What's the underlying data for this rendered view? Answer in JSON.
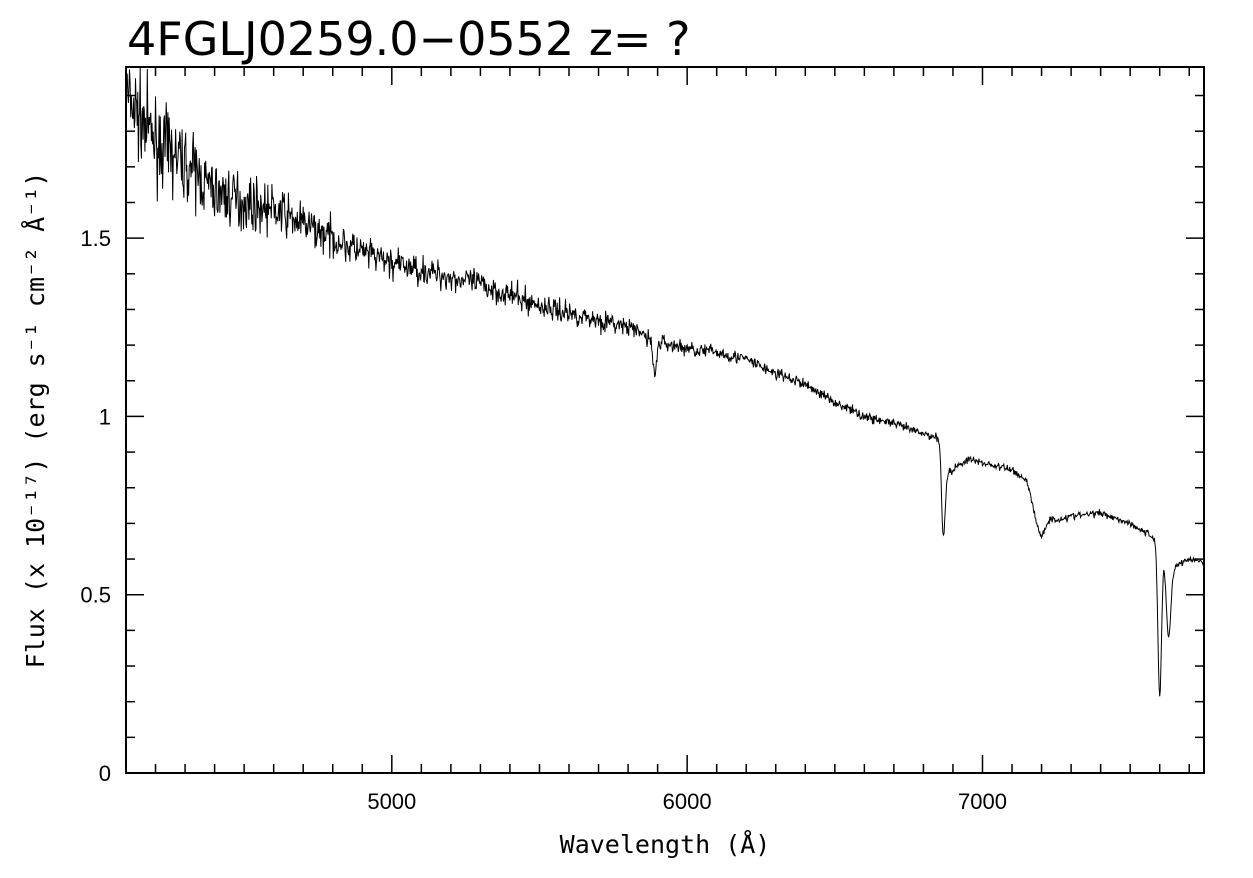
{
  "chart_data": {
    "type": "line",
    "title": "4FGLJ0259.0−0552 z= ?",
    "xlabel": "Wavelength (Å)",
    "ylabel": "Flux (x 10⁻¹⁷) (erg s⁻¹ cm⁻² Å⁻¹)",
    "xlim": [
      4100,
      7750
    ],
    "ylim": [
      0,
      1.98
    ],
    "x_ticks": [
      {
        "value": 5000,
        "label": "5000"
      },
      {
        "value": 6000,
        "label": "6000"
      },
      {
        "value": 7000,
        "label": "7000"
      }
    ],
    "y_ticks": [
      {
        "value": 0,
        "label": "0"
      },
      {
        "value": 0.5,
        "label": "0.5"
      },
      {
        "value": 1,
        "label": "1"
      },
      {
        "value": 1.5,
        "label": "1.5"
      }
    ],
    "x_minor_step": 100,
    "y_minor_step": 0.1,
    "grid": false,
    "line_color": "#000000",
    "series": [
      {
        "continuum": [
          [
            4100,
            1.9
          ],
          [
            4200,
            1.77
          ],
          [
            4300,
            1.71
          ],
          [
            4400,
            1.63
          ],
          [
            4500,
            1.6
          ],
          [
            4600,
            1.58
          ],
          [
            4700,
            1.54
          ],
          [
            4800,
            1.5
          ],
          [
            4900,
            1.46
          ],
          [
            5000,
            1.43
          ],
          [
            5100,
            1.41
          ],
          [
            5200,
            1.39
          ],
          [
            5300,
            1.37
          ],
          [
            5400,
            1.34
          ],
          [
            5500,
            1.31
          ],
          [
            5600,
            1.29
          ],
          [
            5700,
            1.27
          ],
          [
            5800,
            1.25
          ],
          [
            5900,
            1.21
          ],
          [
            6000,
            1.19
          ],
          [
            6100,
            1.18
          ],
          [
            6200,
            1.16
          ],
          [
            6300,
            1.12
          ],
          [
            6400,
            1.09
          ],
          [
            6500,
            1.04
          ],
          [
            6600,
            1.0
          ],
          [
            6700,
            0.98
          ],
          [
            6800,
            0.95
          ],
          [
            6860,
            0.94
          ],
          [
            6880,
            0.84
          ],
          [
            6950,
            0.88
          ],
          [
            7000,
            0.87
          ],
          [
            7100,
            0.85
          ],
          [
            7150,
            0.82
          ],
          [
            7180,
            0.72
          ],
          [
            7250,
            0.71
          ],
          [
            7300,
            0.72
          ],
          [
            7400,
            0.73
          ],
          [
            7500,
            0.7
          ],
          [
            7580,
            0.66
          ],
          [
            7650,
            0.58
          ],
          [
            7700,
            0.6
          ],
          [
            7750,
            0.59
          ]
        ],
        "noise": [
          [
            4100,
            0.09
          ],
          [
            4400,
            0.06
          ],
          [
            4700,
            0.04
          ],
          [
            5000,
            0.03
          ],
          [
            5500,
            0.025
          ],
          [
            6000,
            0.015
          ],
          [
            6500,
            0.01
          ],
          [
            7000,
            0.008
          ],
          [
            7750,
            0.006
          ]
        ],
        "absorption": [
          {
            "center": 5890,
            "depth": 0.1,
            "width": 6
          },
          {
            "center": 6867,
            "depth": 0.24,
            "width": 6
          },
          {
            "center": 7200,
            "depth": 0.05,
            "width": 12
          },
          {
            "center": 7600,
            "depth": 0.42,
            "width": 6
          },
          {
            "center": 7630,
            "depth": 0.22,
            "width": 8
          }
        ]
      }
    ]
  }
}
